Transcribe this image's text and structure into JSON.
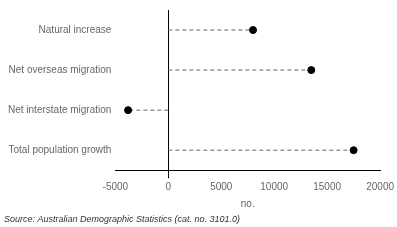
{
  "chart_data": {
    "type": "lollipop",
    "orientation": "horizontal",
    "categories": [
      "Total population growth",
      "Net interstate migration",
      "Net overseas migration",
      "Natural increase"
    ],
    "values": [
      17500,
      -3800,
      13500,
      8000
    ],
    "xlim": [
      -5000,
      20000
    ],
    "xticks": [
      -5000,
      0,
      5000,
      10000,
      15000,
      20000
    ],
    "xlabel": "no.",
    "annotations": [
      "Source: Australian Demographic Statistics (cat. no. 3101.0)"
    ],
    "color": "#000000",
    "line_style": "dashed",
    "marker": "circle",
    "grid": false
  }
}
